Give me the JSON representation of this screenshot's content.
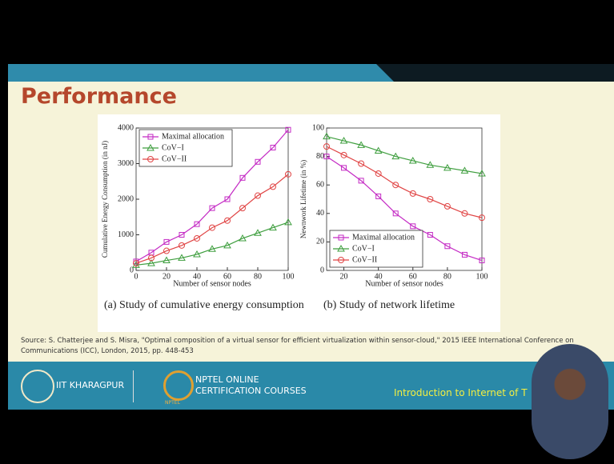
{
  "slide": {
    "title": "Performance",
    "source": "Source: S. Chatterjee and S. Misra, \"Optimal composition of a virtual sensor for efficient virtualization within sensor-cloud,\" 2015 IEEE International Conference on Communications (ICC), London, 2015, pp. 448-453",
    "footer": {
      "institute": "IIT KHARAGPUR",
      "nptel_line1": "NPTEL ONLINE",
      "nptel_line2": "CERTIFICATION COURSES",
      "nptel_logo": "NPTEL",
      "course": "Introduction to Internet of T"
    }
  },
  "chart_data": [
    {
      "type": "line",
      "caption": "(a) Study of cumulative energy consumption",
      "x_label": "Number of sensor nodes",
      "y_label": "Cumulative Energy Consumption (in nJ)",
      "x": [
        0,
        10,
        20,
        30,
        40,
        50,
        60,
        70,
        80,
        90,
        100
      ],
      "xlim": [
        0,
        100
      ],
      "xticks": [
        0,
        20,
        40,
        60,
        80,
        100
      ],
      "ylim": [
        0,
        4000
      ],
      "yticks": [
        0,
        1000,
        2000,
        3000,
        4000
      ],
      "legend": "upper left",
      "series": [
        {
          "name": "Maximal allocation",
          "color": "#c42ac4",
          "marker": "square",
          "values": [
            250,
            500,
            800,
            1000,
            1300,
            1750,
            2000,
            2600,
            3050,
            3450,
            3950
          ]
        },
        {
          "name": "CoV−I",
          "color": "#3e9e3e",
          "marker": "triangle",
          "values": [
            150,
            200,
            280,
            350,
            450,
            600,
            700,
            900,
            1050,
            1200,
            1350
          ]
        },
        {
          "name": "CoV−II",
          "color": "#e04444",
          "marker": "circle",
          "values": [
            200,
            350,
            550,
            700,
            900,
            1200,
            1400,
            1750,
            2100,
            2350,
            2700
          ]
        }
      ]
    },
    {
      "type": "line",
      "caption": "(b) Study of network lifetime",
      "x_label": "Number of sensor nodes",
      "y_label": "Newnwork Lifetime (in %)",
      "x": [
        10,
        20,
        30,
        40,
        50,
        60,
        70,
        80,
        90,
        100
      ],
      "xlim": [
        10,
        100
      ],
      "xticks": [
        20,
        40,
        60,
        80,
        100
      ],
      "ylim": [
        0,
        100
      ],
      "yticks": [
        0,
        20,
        40,
        60,
        80,
        100
      ],
      "legend": "lower left",
      "series": [
        {
          "name": "Maximal allocation",
          "color": "#c42ac4",
          "marker": "square",
          "values": [
            80,
            72,
            63,
            52,
            40,
            31,
            25,
            17,
            11,
            7
          ]
        },
        {
          "name": "CoV−I",
          "color": "#3e9e3e",
          "marker": "triangle",
          "values": [
            94,
            91,
            88,
            84,
            80,
            77,
            74,
            72,
            70,
            68
          ]
        },
        {
          "name": "CoV−II",
          "color": "#e04444",
          "marker": "circle",
          "values": [
            87,
            81,
            75,
            68,
            60,
            54,
            50,
            45,
            40,
            37
          ]
        }
      ]
    }
  ]
}
